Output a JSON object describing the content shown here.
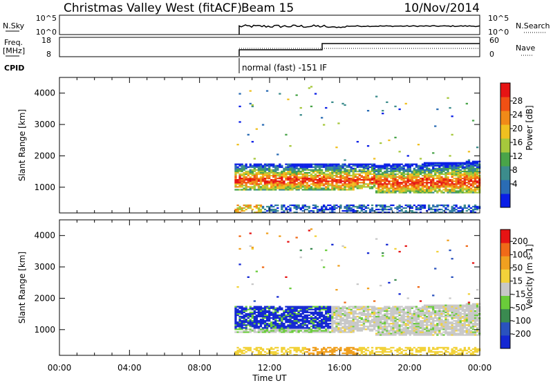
{
  "header": {
    "title": "Christmas Valley West (fitACF)",
    "beam": "Beam 15",
    "date": "10/Nov/2014"
  },
  "status_panels": {
    "nsky_label": "N.Sky",
    "nsky_ticks": [
      "10^5",
      "10^0"
    ],
    "nsearch_label": "N.Search",
    "nsearch_ticks": [
      "10^5",
      "10^0"
    ],
    "freq_label_line1": "Freq.",
    "freq_label_line2": "[MHz]",
    "freq_ticks": [
      "18",
      "8"
    ],
    "nave_label": "Nave",
    "nave_ticks": [
      "60",
      "0"
    ],
    "cpid_label": "CPID",
    "cpid_value": "normal (fast) -151 IF"
  },
  "colors": {
    "power": [
      "#0a1ee6",
      "#2a6cb4",
      "#3c8c8c",
      "#49a449",
      "#a6c83c",
      "#f0c020",
      "#f08a18",
      "#f05014",
      "#e61414"
    ],
    "velocity": [
      "#1428d2",
      "#2a52be",
      "#3a8a50",
      "#6acc3a",
      "#c8c8c8",
      "#f2d23a",
      "#f0a020",
      "#f06a18",
      "#e61414"
    ]
  },
  "chart_data": [
    {
      "type": "heatmap",
      "name": "power",
      "ylabel": "Slant Range [km]",
      "xlabel": "Time UT",
      "x_ticks": [
        "00:00",
        "04:00",
        "08:00",
        "12:00",
        "16:00",
        "20:00",
        "00:00"
      ],
      "xlim_hours": [
        0,
        24
      ],
      "ylim_km": [
        180,
        4500
      ],
      "y_ticks": [
        1000,
        2000,
        3000,
        4000
      ],
      "data_start_hour": 10.0,
      "colorbar_label": "Power [dB]",
      "colorbar_ticks": [
        "28",
        "24",
        "20",
        "16",
        "12",
        "8",
        "4"
      ],
      "colorbar_range": [
        0,
        32
      ]
    },
    {
      "type": "heatmap",
      "name": "velocity",
      "ylabel": "Slant Range [km]",
      "xlabel": "Time UT",
      "x_ticks": [
        "00:00",
        "04:00",
        "08:00",
        "12:00",
        "16:00",
        "20:00",
        "00:00"
      ],
      "xlim_hours": [
        0,
        24
      ],
      "ylim_km": [
        180,
        4500
      ],
      "y_ticks": [
        1000,
        2000,
        3000,
        4000
      ],
      "data_start_hour": 10.0,
      "colorbar_label": "Velocity [m s-1]",
      "colorbar_ticks": [
        "200",
        "100",
        "50",
        "15",
        "-15",
        "-50",
        "-100",
        "-200"
      ],
      "colorbar_levels": [
        200,
        100,
        50,
        15,
        -15,
        -50,
        -100,
        -200
      ]
    }
  ],
  "xaxis": {
    "ticks": [
      "00:00",
      "04:00",
      "08:00",
      "12:00",
      "16:00",
      "20:00",
      "00:00"
    ],
    "label": "Time UT"
  }
}
